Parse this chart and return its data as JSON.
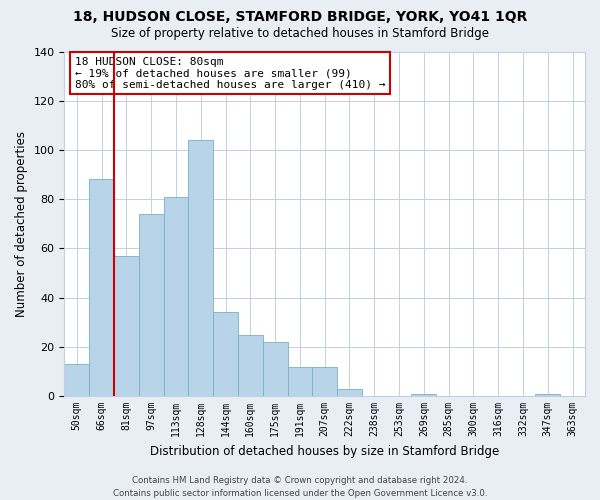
{
  "title": "18, HUDSON CLOSE, STAMFORD BRIDGE, YORK, YO41 1QR",
  "subtitle": "Size of property relative to detached houses in Stamford Bridge",
  "xlabel": "Distribution of detached houses by size in Stamford Bridge",
  "ylabel": "Number of detached properties",
  "bar_color": "#b8d4e8",
  "bar_edge_color": "#7aaec8",
  "vline_color": "#cc0000",
  "bins": [
    "50sqm",
    "66sqm",
    "81sqm",
    "97sqm",
    "113sqm",
    "128sqm",
    "144sqm",
    "160sqm",
    "175sqm",
    "191sqm",
    "207sqm",
    "222sqm",
    "238sqm",
    "253sqm",
    "269sqm",
    "285sqm",
    "300sqm",
    "316sqm",
    "332sqm",
    "347sqm",
    "363sqm"
  ],
  "heights": [
    13,
    88,
    57,
    74,
    81,
    104,
    34,
    25,
    22,
    12,
    12,
    3,
    0,
    0,
    1,
    0,
    0,
    0,
    0,
    1,
    0
  ],
  "ylim": [
    0,
    140
  ],
  "yticks": [
    0,
    20,
    40,
    60,
    80,
    100,
    120,
    140
  ],
  "annotation_text_line1": "18 HUDSON CLOSE: 80sqm",
  "annotation_text_line2": "← 19% of detached houses are smaller (99)",
  "annotation_text_line3": "80% of semi-detached houses are larger (410) →",
  "footer_line1": "Contains HM Land Registry data © Crown copyright and database right 2024.",
  "footer_line2": "Contains public sector information licensed under the Open Government Licence v3.0.",
  "background_color": "#e8eef4",
  "plot_bg_color": "#ffffff",
  "grid_color": "#c0d0e0"
}
